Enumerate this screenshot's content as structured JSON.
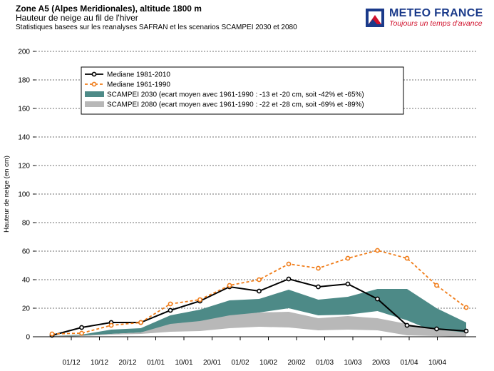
{
  "header": {
    "title": "Zone A5 (Alpes Meridionales), altitude 1800 m",
    "subtitle": "Hauteur de neige au fil de l'hiver",
    "subtitle2": "Statistiques basees sur les reanalyses SAFRAN et les scenarios SCAMPEI 2030 et 2080"
  },
  "logo": {
    "brand": "METEO FRANCE",
    "tagline": "Toujours un temps d'avance",
    "icon": "meteo-france-logo-icon",
    "colors": {
      "blue": "#1a3a8a",
      "red": "#d0102b"
    }
  },
  "chart_data": {
    "type": "line",
    "title": "",
    "xlabel": "",
    "ylabel": "Hauteur de neige (en cm)",
    "ylim": [
      0,
      200
    ],
    "yticks": [
      0,
      20,
      40,
      60,
      80,
      100,
      120,
      140,
      160,
      180,
      200
    ],
    "grid": true,
    "legend_position": "top-left",
    "x_tick_labels": [
      "01/12",
      "10/12",
      "20/12",
      "01/01",
      "10/01",
      "20/01",
      "01/02",
      "10/02",
      "20/02",
      "01/03",
      "10/03",
      "20/03",
      "01/04",
      "10/04"
    ],
    "series": [
      {
        "name": "Mediane 1981-2010",
        "kind": "line",
        "style": "solid",
        "color": "#000000",
        "values": [
          1,
          6.5,
          10,
          10,
          18.5,
          25,
          35,
          32,
          40.5,
          35,
          37,
          26.5,
          8,
          5.5,
          4
        ]
      },
      {
        "name": "Mediane 1961-1990",
        "kind": "line",
        "style": "dashed",
        "color": "#f07d1a",
        "values": [
          2,
          2.5,
          8,
          10,
          23,
          26,
          36,
          40,
          51,
          48,
          55,
          60.5,
          55,
          36,
          20.5
        ]
      },
      {
        "name": "SCAMPEI 2030 (ecart moyen avec 1961-1990 : -13 et -20 cm, soit -42% et -65%)",
        "kind": "band",
        "color": "#4d8a87",
        "lower": [
          0,
          0.5,
          2,
          3,
          8.5,
          9,
          14,
          17,
          20,
          15,
          15.5,
          18,
          11.5,
          3,
          1
        ],
        "upper": [
          0.5,
          1.5,
          5,
          6,
          15,
          19,
          25.5,
          26.5,
          33,
          26,
          28,
          33.5,
          33.5,
          20,
          10
        ]
      },
      {
        "name": "SCAMPEI 2080 (ecart moyen avec 1961-1990 : -22 et -28 cm, soit -69% et -89%)",
        "kind": "band",
        "color": "#b8b8b8",
        "lower": [
          0,
          0.5,
          1.5,
          2,
          3.5,
          4,
          6,
          7,
          6.5,
          4.5,
          5,
          4.5,
          1,
          0.5,
          0
        ],
        "upper": [
          0.5,
          1,
          2,
          3,
          9,
          11,
          15,
          17,
          17.5,
          13,
          14.5,
          13,
          9,
          5,
          3
        ]
      }
    ]
  }
}
